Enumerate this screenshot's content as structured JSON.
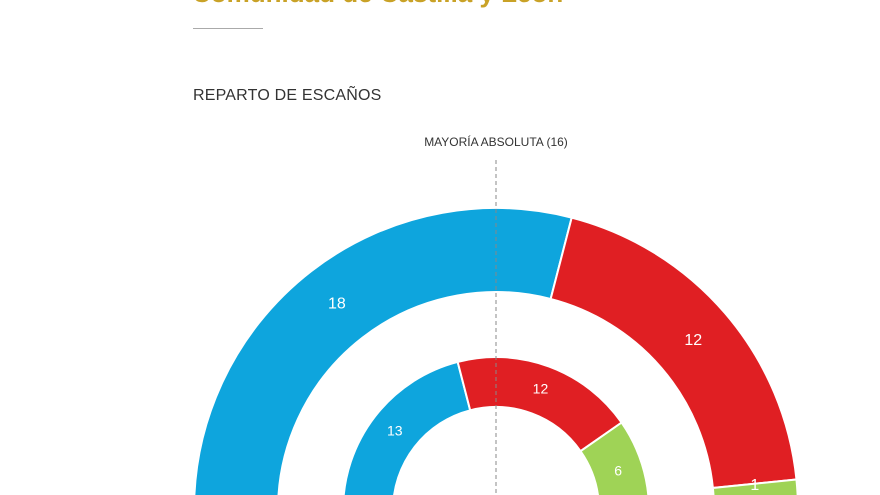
{
  "header": {
    "title": "Comunidad de Castilla y León",
    "section_title": "REPARTO DE ESCAÑOS"
  },
  "chart_data": {
    "type": "pie",
    "variant": "half-donut, two concentric rings",
    "annotation": "MAYORÍA ABSOLUTA (16)",
    "majority_threshold": 16,
    "rings": [
      {
        "ring": "outer",
        "slices": [
          {
            "value": 18,
            "color": "#0ea5dd"
          },
          {
            "value": 12,
            "color": "#e01f23"
          },
          {
            "value": 1,
            "color": "#9fd356"
          }
        ]
      },
      {
        "ring": "inner",
        "slices": [
          {
            "value": 13,
            "color": "#0ea5dd"
          },
          {
            "value": 12,
            "color": "#e01f23"
          },
          {
            "value": 6,
            "color": "#9fd356"
          }
        ]
      }
    ]
  }
}
